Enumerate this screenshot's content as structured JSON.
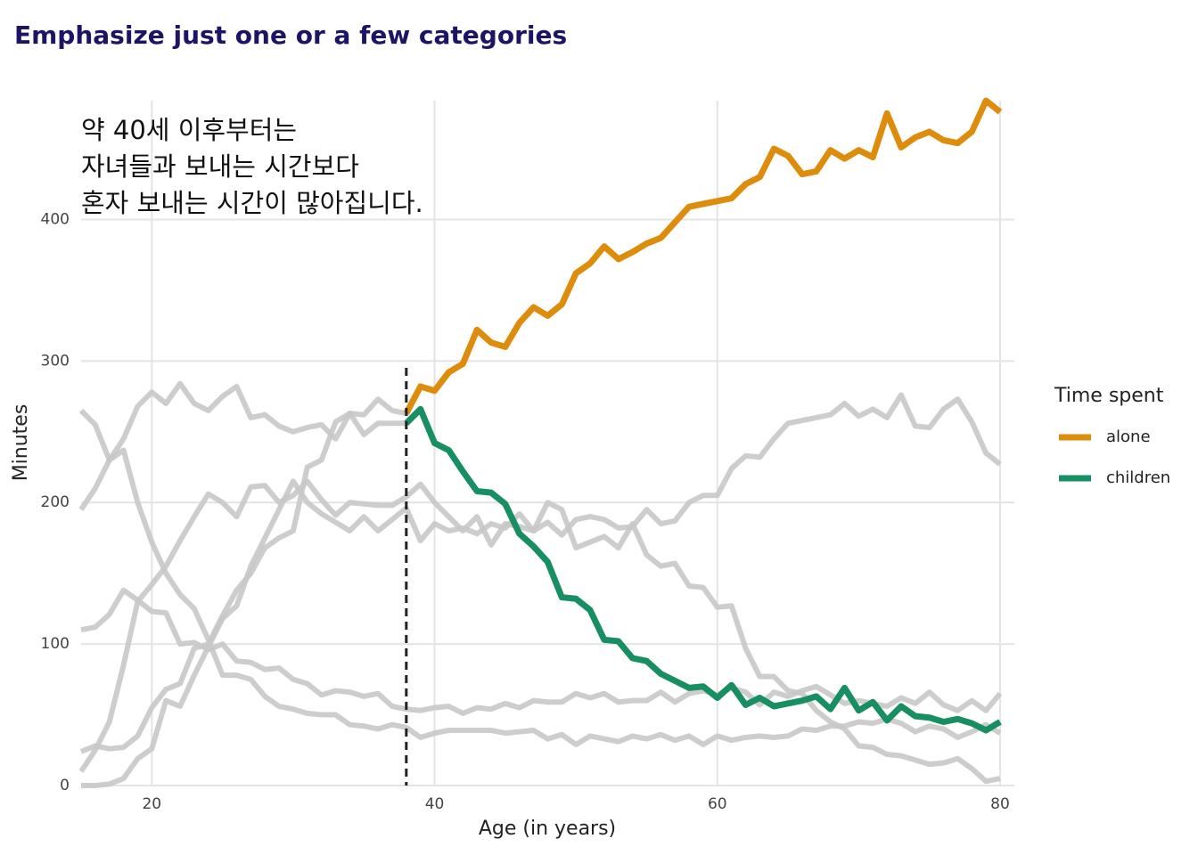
{
  "chart_data": {
    "type": "line",
    "title": "Emphasize just one or a few categories",
    "annotation": [
      "약 40세 이후부터는",
      "자녀들과 보내는 시간보다",
      "혼자 보내는 시간이 많아집니다."
    ],
    "x_label": "Age (in years)",
    "y_label": "Minutes",
    "legend_title": "Time spent",
    "xlim": [
      15,
      80
    ],
    "ylim": [
      0,
      484
    ],
    "xticks": [
      20,
      40,
      60,
      80
    ],
    "yticks": [
      0,
      100,
      200,
      300,
      400
    ],
    "grid": true,
    "vline": 38,
    "legend_position": "right",
    "x": [
      15,
      16,
      17,
      18,
      19,
      20,
      21,
      22,
      23,
      24,
      25,
      26,
      27,
      28,
      29,
      30,
      31,
      32,
      33,
      34,
      35,
      36,
      37,
      38,
      39,
      40,
      41,
      42,
      43,
      44,
      45,
      46,
      47,
      48,
      49,
      50,
      51,
      52,
      53,
      54,
      55,
      56,
      57,
      58,
      59,
      60,
      61,
      62,
      63,
      64,
      65,
      66,
      67,
      68,
      69,
      70,
      71,
      72,
      73,
      74,
      75,
      76,
      77,
      78,
      79,
      80
    ],
    "series": [
      {
        "color": "#c8c8c8",
        "values": [
          265,
          255,
          230,
          237,
          200,
          172,
          150,
          135,
          125,
          103,
          78,
          78,
          75,
          63,
          56,
          54,
          51,
          50,
          50,
          43,
          42,
          40,
          43,
          41,
          34,
          37,
          39,
          39,
          39,
          39,
          37,
          38,
          39,
          33,
          36,
          29,
          35,
          33,
          31,
          35,
          33,
          36,
          32,
          35,
          29,
          35,
          32,
          34,
          35,
          34,
          35,
          40,
          39,
          42,
          42,
          45,
          44,
          47,
          44,
          38,
          42,
          40,
          34,
          38,
          43,
          37
        ]
      },
      {
        "color": "#c8c8c8",
        "values": [
          110,
          112,
          121,
          138,
          131,
          123,
          122,
          100,
          101,
          96,
          100,
          88,
          87,
          82,
          83,
          75,
          72,
          64,
          67,
          66,
          63,
          65,
          56,
          54,
          53,
          55,
          56,
          51,
          55,
          54,
          58,
          55,
          60,
          59,
          59,
          65,
          62,
          65,
          59,
          60,
          60,
          66,
          59,
          65,
          67,
          64,
          69,
          66,
          57,
          66,
          63,
          67,
          70,
          64,
          58,
          60,
          58,
          56,
          62,
          58,
          66,
          57,
          53,
          60,
          53,
          65
        ]
      },
      {
        "color": "#c8c8c8",
        "values": [
          10,
          25,
          45,
          85,
          130,
          142,
          155,
          173,
          190,
          206,
          200,
          190,
          211,
          212,
          200,
          205,
          215,
          202,
          191,
          200,
          199,
          198,
          198,
          204,
          213,
          200,
          190,
          180,
          190,
          170,
          185,
          183,
          180,
          200,
          195,
          168,
          172,
          176,
          168,
          185,
          163,
          155,
          157,
          141,
          140,
          126,
          127,
          97,
          77,
          77,
          67,
          65,
          53,
          45,
          40,
          28,
          27,
          22,
          21,
          18,
          15,
          16,
          19,
          12,
          3,
          5
        ]
      },
      {
        "color": "#c8c8c8",
        "values": [
          0,
          0,
          1,
          5,
          19,
          26,
          60,
          56,
          78,
          98,
          118,
          127,
          155,
          175,
          195,
          215,
          200,
          192,
          186,
          180,
          190,
          180,
          188,
          196,
          173,
          185,
          180,
          182,
          178,
          185,
          182,
          192,
          180,
          186,
          177,
          188,
          190,
          188,
          182,
          183,
          195,
          185,
          187,
          200,
          205,
          205,
          224,
          233,
          232,
          245,
          256,
          258,
          260,
          262,
          270,
          261,
          266,
          260,
          276,
          254,
          253,
          266,
          273,
          257,
          235,
          227
        ]
      },
      {
        "color": "#c8c8c8",
        "values": [
          195,
          210,
          230,
          245,
          268,
          278,
          270,
          284,
          270,
          265,
          275,
          282,
          260,
          262,
          254,
          250,
          253,
          255,
          245,
          263,
          262,
          273,
          265,
          263,
          282,
          279,
          292,
          298,
          322,
          313,
          310,
          327,
          338,
          332,
          340,
          362,
          369,
          381,
          372,
          377,
          383,
          387,
          398,
          409,
          411,
          413,
          415,
          425,
          430,
          450,
          445,
          432,
          434,
          449,
          443,
          449,
          444,
          475,
          451,
          458,
          462,
          456,
          454,
          462,
          484,
          476
        ]
      },
      {
        "color": "#c8c8c8",
        "values": [
          24,
          28,
          26,
          27,
          35,
          55,
          68,
          72,
          97,
          100,
          120,
          138,
          150,
          168,
          175,
          180,
          225,
          230,
          257,
          263,
          248,
          256,
          256,
          256,
          266,
          242,
          237,
          222,
          208,
          207,
          199,
          178,
          169,
          158,
          133,
          132,
          124,
          103,
          102,
          90,
          88,
          79,
          74,
          69,
          70,
          62,
          71,
          57,
          62,
          56,
          58,
          60,
          63,
          54,
          69,
          53,
          59,
          46,
          56,
          49,
          48,
          45,
          47,
          44,
          39,
          45
        ]
      },
      {
        "name": "alone",
        "color": "#de8c0c",
        "values": [
          null,
          null,
          null,
          null,
          null,
          null,
          null,
          null,
          null,
          null,
          null,
          null,
          null,
          null,
          null,
          null,
          null,
          null,
          null,
          null,
          null,
          null,
          null,
          263,
          282,
          279,
          292,
          298,
          322,
          313,
          310,
          327,
          338,
          332,
          340,
          362,
          369,
          381,
          372,
          377,
          383,
          387,
          398,
          409,
          411,
          413,
          415,
          425,
          430,
          450,
          445,
          432,
          434,
          449,
          443,
          449,
          444,
          475,
          451,
          458,
          462,
          456,
          454,
          462,
          484,
          476
        ]
      },
      {
        "name": "children",
        "color": "#178f62",
        "values": [
          null,
          null,
          null,
          null,
          null,
          null,
          null,
          null,
          null,
          null,
          null,
          null,
          null,
          null,
          null,
          null,
          null,
          null,
          null,
          null,
          null,
          null,
          null,
          256,
          266,
          242,
          237,
          222,
          208,
          207,
          199,
          178,
          169,
          158,
          133,
          132,
          124,
          103,
          102,
          90,
          88,
          79,
          74,
          69,
          70,
          62,
          71,
          57,
          62,
          56,
          58,
          60,
          63,
          54,
          69,
          53,
          59,
          46,
          56,
          49,
          48,
          45,
          47,
          44,
          39,
          45
        ]
      }
    ]
  }
}
